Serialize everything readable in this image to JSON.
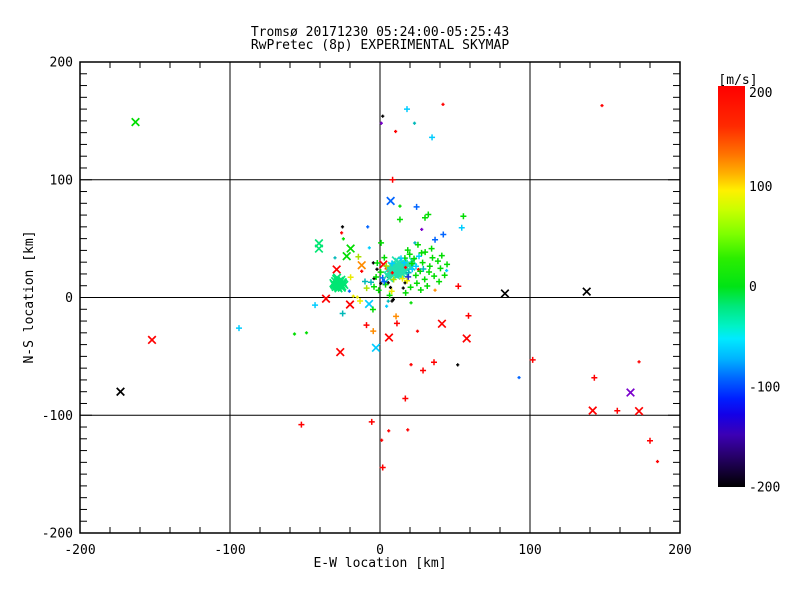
{
  "chart_data": {
    "type": "scatter",
    "title": "Tromsø 20171230 05:24:00-05:25:43",
    "subtitle": "RwPretec (8p) EXPERIMENTAL SKYMAP",
    "xlabel": "E-W location [km]",
    "ylabel": "N-S location [km]",
    "xlim": [
      -200,
      200
    ],
    "ylim": [
      -200,
      200
    ],
    "xticks": [
      -200,
      -100,
      0,
      100,
      200
    ],
    "yticks": [
      -200,
      -100,
      0,
      100,
      200
    ],
    "x_minor_step": 20,
    "y_minor_step": 10,
    "grid": "on",
    "grid_lines": {
      "x": [
        -100,
        0,
        100
      ],
      "y": [
        -100,
        0,
        100
      ]
    },
    "frame_color": "#000000",
    "colorbar": {
      "label": "[m/s]",
      "max": 200,
      "min": -200,
      "ticks": [
        200,
        100,
        0,
        -100,
        -200
      ],
      "stops": [
        [
          0.0,
          "#ff0000"
        ],
        [
          0.1,
          "#ff2a00"
        ],
        [
          0.17,
          "#ff7300"
        ],
        [
          0.22,
          "#ffb300"
        ],
        [
          0.26,
          "#fff000"
        ],
        [
          0.31,
          "#c8ff00"
        ],
        [
          0.37,
          "#7dff00"
        ],
        [
          0.43,
          "#2bee00"
        ],
        [
          0.5,
          "#00e415"
        ],
        [
          0.55,
          "#00e87c"
        ],
        [
          0.6,
          "#00f2c8"
        ],
        [
          0.63,
          "#00eaff"
        ],
        [
          0.68,
          "#00b4ff"
        ],
        [
          0.73,
          "#0064ff"
        ],
        [
          0.78,
          "#001eff"
        ],
        [
          0.82,
          "#1400e6"
        ],
        [
          0.87,
          "#3c00b4"
        ],
        [
          0.92,
          "#28006e"
        ],
        [
          1.0,
          "#000000"
        ]
      ]
    },
    "palette": {
      "R": "#ff0000",
      "O": "#ff8c00",
      "Y": "#eaea00",
      "YG": "#aae000",
      "G": "#00dd00",
      "SG": "#00e673",
      "TQ": "#22e0ae",
      "T": "#00b8b8",
      "C": "#00ccff",
      "B": "#0064ff",
      "DB": "#2328d2",
      "P": "#7a00cc",
      "K": "#000000"
    },
    "marker_legend": {
      "x": "cross-x marker",
      "+": "plus marker",
      ".": "tiny mark"
    },
    "points": [
      [
        -163,
        149,
        "G",
        "x"
      ],
      [
        148,
        163,
        "R",
        "."
      ],
      [
        18,
        160,
        "C",
        "+"
      ],
      [
        42,
        164,
        "R",
        "."
      ],
      [
        1.8,
        154,
        "K",
        "."
      ],
      [
        0.9,
        148,
        "P",
        "."
      ],
      [
        23,
        148,
        "T",
        "."
      ],
      [
        10.4,
        141,
        "R",
        "."
      ],
      [
        34.7,
        136,
        "C",
        "+"
      ],
      [
        8.4,
        100,
        "R",
        "+"
      ],
      [
        7.1,
        82,
        "B",
        "x"
      ],
      [
        -8.2,
        60,
        "B",
        "."
      ],
      [
        83.3,
        3.4,
        "K",
        "x"
      ],
      [
        137.8,
        5,
        "K",
        "x"
      ],
      [
        -173,
        -80,
        "K",
        "x"
      ],
      [
        -152,
        -36,
        "R",
        "x"
      ],
      [
        -94,
        -26,
        "C",
        "+"
      ],
      [
        -57,
        -31,
        "G",
        "."
      ],
      [
        -49,
        -30,
        "G",
        "."
      ],
      [
        -52.4,
        -108,
        "R",
        "+"
      ],
      [
        101.8,
        -53,
        "R",
        "+"
      ],
      [
        92.7,
        -68,
        "B",
        "."
      ],
      [
        172.7,
        -54.6,
        "R",
        "."
      ],
      [
        142.9,
        -68.2,
        "R",
        "+"
      ],
      [
        167,
        -80.7,
        "P",
        "x"
      ],
      [
        141.8,
        -96,
        "R",
        "x"
      ],
      [
        158.2,
        -96.2,
        "R",
        "+"
      ],
      [
        172.7,
        -96.5,
        "R",
        "x"
      ],
      [
        180,
        -121.7,
        "R",
        "+"
      ],
      [
        185,
        -139.3,
        "R",
        "."
      ],
      [
        -5.5,
        -105.6,
        "R",
        "+"
      ],
      [
        5.8,
        -113.2,
        "R",
        "."
      ],
      [
        18.5,
        -112.4,
        "R",
        "."
      ],
      [
        1.1,
        -121.2,
        "R",
        "."
      ],
      [
        1.8,
        -144.4,
        "R",
        "+"
      ],
      [
        -2.7,
        -42.7,
        "C",
        "x"
      ],
      [
        -26.5,
        -46.4,
        "R",
        "x"
      ],
      [
        20.7,
        -57,
        "R",
        "."
      ],
      [
        36,
        -55,
        "R",
        "+"
      ],
      [
        51.8,
        -57.2,
        "K",
        "."
      ],
      [
        28.7,
        -62,
        "R",
        "+"
      ],
      [
        16.9,
        -85.8,
        "R",
        "+"
      ],
      [
        6,
        -34,
        "R",
        "x"
      ],
      [
        25,
        -28.6,
        "R",
        "."
      ],
      [
        41.3,
        -22.3,
        "R",
        "x"
      ],
      [
        59,
        -15.5,
        "R",
        "+"
      ],
      [
        57.8,
        -34.8,
        "R",
        "x"
      ],
      [
        11.3,
        -22,
        "R",
        "+"
      ],
      [
        -9,
        -23.5,
        "R",
        "+"
      ],
      [
        -4.5,
        -28.6,
        "O",
        "+"
      ],
      [
        10.7,
        -16,
        "O",
        "+"
      ],
      [
        -24.9,
        -13.6,
        "T",
        "+"
      ],
      [
        -43.3,
        -6.5,
        "C",
        "+"
      ],
      [
        -20,
        -6,
        "R",
        "x"
      ],
      [
        -13.3,
        -3,
        "Y",
        "+"
      ],
      [
        -7.3,
        -5.5,
        "C",
        "x"
      ],
      [
        8,
        -3,
        "K",
        "."
      ],
      [
        20.7,
        -4.5,
        "G",
        "."
      ],
      [
        -36,
        -1,
        "R",
        "x"
      ],
      [
        -15.1,
        0.3,
        "Y",
        "."
      ],
      [
        -17.8,
        1.1,
        "Y",
        "."
      ],
      [
        5.5,
        -3.1,
        "T",
        "."
      ],
      [
        8.9,
        -1.7,
        "K",
        "."
      ],
      [
        4.4,
        -7.4,
        "C",
        "."
      ],
      [
        -4.7,
        -10.2,
        "G",
        "+"
      ],
      [
        30,
        67.7,
        "G",
        "+"
      ],
      [
        13.3,
        66.2,
        "G",
        "+"
      ],
      [
        55.6,
        69,
        "G",
        "+"
      ],
      [
        32.2,
        70.5,
        "G",
        "+"
      ],
      [
        24.4,
        77,
        "B",
        "+"
      ],
      [
        13.3,
        77.6,
        "G",
        "."
      ],
      [
        54.5,
        59.2,
        "C",
        "+"
      ],
      [
        27.8,
        57.8,
        "P",
        "."
      ],
      [
        42.2,
        53.5,
        "B",
        "+"
      ],
      [
        36.7,
        49,
        "B",
        "+"
      ],
      [
        23.3,
        46.4,
        "T",
        "."
      ],
      [
        -25.6,
        54.9,
        "R",
        "."
      ],
      [
        -25,
        60,
        "K",
        "."
      ],
      [
        -24.4,
        49.8,
        "G",
        "."
      ],
      [
        -7.1,
        42.2,
        "C",
        "."
      ],
      [
        0.7,
        46.4,
        "G",
        "+"
      ],
      [
        -40.7,
        46,
        "SG",
        "x"
      ],
      [
        -40.7,
        41.5,
        "SG",
        "x"
      ],
      [
        -19.6,
        41.6,
        "G",
        "x"
      ],
      [
        -22.2,
        35.1,
        "G",
        "x"
      ],
      [
        -30,
        33.7,
        "T",
        "."
      ],
      [
        -14.4,
        34.6,
        "YG",
        "+"
      ],
      [
        -12.2,
        27.4,
        "O",
        "x"
      ],
      [
        -12.2,
        22.3,
        "R",
        "."
      ],
      [
        -28.9,
        23.8,
        "R",
        "x"
      ],
      [
        52.2,
        9.6,
        "R",
        "+"
      ],
      [
        36.7,
        6.2,
        "O",
        "."
      ],
      [
        44.4,
        22.9,
        "C",
        "."
      ],
      [
        25.6,
        23.8,
        "R",
        "."
      ],
      [
        -19.6,
        17.2,
        "Y",
        "+"
      ],
      [
        -20.4,
        5.4,
        "B",
        "."
      ],
      [
        -10,
        13.6,
        "T",
        "+"
      ],
      [
        -6,
        13,
        "T",
        "+"
      ],
      [
        -4,
        16.1,
        "K",
        "."
      ],
      [
        -4,
        9.1,
        "G",
        "+"
      ],
      [
        1.8,
        16.7,
        "B",
        "+"
      ],
      [
        5.3,
        17.8,
        "K",
        "."
      ],
      [
        5.1,
        24.4,
        "R",
        "+"
      ],
      [
        2.2,
        28,
        "R",
        "x"
      ],
      [
        7.8,
        5.3,
        "Y",
        "+"
      ],
      [
        5.5,
        12.5,
        "K",
        "."
      ],
      [
        16.7,
        12.5,
        "K",
        "."
      ],
      [
        11.1,
        19.5,
        "DB",
        "."
      ],
      [
        26,
        35,
        "C",
        "+"
      ],
      [
        -4.4,
        29.4,
        "K",
        "."
      ],
      [
        -30.1,
        10.2,
        "SG",
        "x"
      ],
      [
        -28.3,
        12.8,
        "SG",
        "x"
      ],
      [
        -26,
        11,
        "SG",
        "x"
      ],
      [
        -29.5,
        8.9,
        "SG",
        "x"
      ],
      [
        -27.1,
        14.1,
        "SG",
        "x"
      ],
      [
        -25.2,
        9.5,
        "SG",
        "x"
      ],
      [
        -31,
        12.2,
        "SG",
        "x"
      ],
      [
        -28.8,
        10.5,
        "SG",
        "x"
      ],
      [
        -26.6,
        13.3,
        "SG",
        "x"
      ],
      [
        -24.5,
        11.8,
        "SG",
        "x"
      ],
      [
        -29.9,
        13.9,
        "SG",
        "x"
      ],
      [
        -27.7,
        7.8,
        "SG",
        "x"
      ],
      [
        -25.8,
        15,
        "SG",
        "x"
      ],
      [
        -30.6,
        11.3,
        "SG",
        "x"
      ],
      [
        -28.1,
        9.1,
        "SG",
        "x"
      ],
      [
        -26.3,
        10.1,
        "SG",
        "x"
      ],
      [
        -24.9,
        13,
        "SG",
        "x"
      ],
      [
        -29.2,
        15.8,
        "SG",
        "x"
      ],
      [
        -27.4,
        11.9,
        "SG",
        "x"
      ],
      [
        -25.5,
        8.3,
        "SG",
        "x"
      ],
      [
        -23.8,
        10.7,
        "SG",
        "x"
      ],
      [
        -28.6,
        16.9,
        "SG",
        "x"
      ],
      [
        11.2,
        23.5,
        "TQ",
        "x"
      ],
      [
        13,
        24.8,
        "TQ",
        "x"
      ],
      [
        9.8,
        22.1,
        "TQ",
        "x"
      ],
      [
        12.5,
        21,
        "TQ",
        "x"
      ],
      [
        14.1,
        25.9,
        "TQ",
        "x"
      ],
      [
        10.5,
        26.3,
        "TQ",
        "x"
      ],
      [
        8.9,
        24,
        "TQ",
        "x"
      ],
      [
        13.8,
        22.7,
        "TQ",
        "x"
      ],
      [
        15.2,
        24.3,
        "TQ",
        "x"
      ],
      [
        11.9,
        27.5,
        "TQ",
        "x"
      ],
      [
        7.6,
        21.5,
        "TQ",
        "x"
      ],
      [
        12.2,
        19.4,
        "TQ",
        "x"
      ],
      [
        14.8,
        27,
        "TQ",
        "x"
      ],
      [
        10.1,
        20.3,
        "TQ",
        "x"
      ],
      [
        13.4,
        26.1,
        "TQ",
        "x"
      ],
      [
        16,
        22,
        "TQ",
        "x"
      ],
      [
        9.2,
        25.2,
        "TQ",
        "x"
      ],
      [
        11.5,
        21.8,
        "TQ",
        "x"
      ],
      [
        12.8,
        23.9,
        "TQ",
        "x"
      ],
      [
        14.5,
        20.6,
        "TQ",
        "x"
      ],
      [
        8.3,
        23.1,
        "TQ",
        "x"
      ],
      [
        10.8,
        24.6,
        "TQ",
        "x"
      ],
      [
        13.1,
        28.4,
        "TQ",
        "x"
      ],
      [
        15.5,
        25.5,
        "TQ",
        "x"
      ],
      [
        9.5,
        19.8,
        "TQ",
        "x"
      ],
      [
        12,
        25.1,
        "TQ",
        "x"
      ],
      [
        6.8,
        22.8,
        "TQ",
        "x"
      ],
      [
        16.8,
        26.4,
        "TQ",
        "x"
      ],
      [
        11,
        18.6,
        "TQ",
        "x"
      ],
      [
        13.6,
        24.1,
        "TQ",
        "x"
      ],
      [
        7.9,
        26.8,
        "TQ",
        "x"
      ],
      [
        14.2,
        23.2,
        "TQ",
        "x"
      ],
      [
        10.3,
        27.9,
        "TQ",
        "x"
      ],
      [
        12.6,
        22.4,
        "TQ",
        "x"
      ],
      [
        15.8,
        28.8,
        "TQ",
        "x"
      ],
      [
        8.6,
        20.9,
        "TQ",
        "x"
      ],
      [
        17.4,
        24.9,
        "TQ",
        "x"
      ],
      [
        11.7,
        26.6,
        "TQ",
        "x"
      ],
      [
        13.3,
        20.1,
        "TQ",
        "x"
      ],
      [
        9.9,
        23.6,
        "TQ",
        "x"
      ],
      [
        18.2,
        27.7,
        "TQ",
        "x"
      ],
      [
        5.9,
        24.5,
        "TQ",
        "x"
      ],
      [
        16.3,
        21.3,
        "TQ",
        "x"
      ],
      [
        12.3,
        30.2,
        "TQ",
        "x"
      ],
      [
        10.6,
        31.5,
        "TQ",
        "x"
      ],
      [
        19.5,
        29,
        "TQ",
        "x"
      ],
      [
        20.8,
        26.2,
        "TQ",
        "x"
      ],
      [
        22,
        30.8,
        "TQ",
        "x"
      ],
      [
        4.8,
        18.9,
        "TQ",
        "x"
      ],
      [
        6.2,
        16.5,
        "TQ",
        "x"
      ],
      [
        18.5,
        40.2,
        "G",
        "+"
      ],
      [
        25.3,
        44.8,
        "G",
        "+"
      ],
      [
        30.1,
        38.5,
        "G",
        "+"
      ],
      [
        22.7,
        33,
        "G",
        "+"
      ],
      [
        28.4,
        29.6,
        "G",
        "+"
      ],
      [
        35,
        33.8,
        "G",
        "+"
      ],
      [
        33.2,
        26.5,
        "G",
        "+"
      ],
      [
        38.6,
        30.9,
        "G",
        "+"
      ],
      [
        40.3,
        24.7,
        "G",
        "+"
      ],
      [
        36.1,
        18.2,
        "G",
        "+"
      ],
      [
        29.8,
        15.4,
        "G",
        "+"
      ],
      [
        24.6,
        12.1,
        "G",
        "+"
      ],
      [
        31.5,
        9.8,
        "G",
        "+"
      ],
      [
        27.2,
        6.4,
        "G",
        "+"
      ],
      [
        20.4,
        8.7,
        "G",
        "+"
      ],
      [
        17.1,
        3.9,
        "G",
        "+"
      ],
      [
        23.9,
        18.8,
        "G",
        "+"
      ],
      [
        26.8,
        22.3,
        "G",
        "+"
      ],
      [
        32.7,
        21.7,
        "G",
        "+"
      ],
      [
        21.3,
        28.9,
        "G",
        "+"
      ],
      [
        16.6,
        33.4,
        "G",
        "+"
      ],
      [
        19.8,
        36.7,
        "G",
        "+"
      ],
      [
        27.7,
        37.9,
        "G",
        "+"
      ],
      [
        34.4,
        41.5,
        "G",
        "+"
      ],
      [
        41.2,
        35.6,
        "G",
        "+"
      ],
      [
        44.7,
        28.1,
        "G",
        "+"
      ],
      [
        39.4,
        13.5,
        "G",
        "+"
      ],
      [
        43.1,
        18.9,
        "G",
        "+"
      ],
      [
        2.9,
        33.9,
        "G",
        "+"
      ],
      [
        -1.8,
        29.3,
        "G",
        "+"
      ],
      [
        0.4,
        21.6,
        "G",
        "+"
      ],
      [
        -2.6,
        17.4,
        "G",
        "+"
      ],
      [
        3.7,
        10.9,
        "G",
        "+"
      ],
      [
        -0.9,
        6.2,
        "G",
        "+"
      ],
      [
        6.4,
        1.8,
        "G",
        "+"
      ],
      [
        9.1,
        15.3,
        "YG",
        "+"
      ],
      [
        4.2,
        26.7,
        "YG",
        "+"
      ],
      [
        15,
        16,
        "Y",
        "+"
      ],
      [
        -8.9,
        8,
        "YG",
        "+"
      ],
      [
        18,
        14.2,
        "Y",
        "+"
      ],
      [
        16.2,
        29.5,
        "C",
        "+"
      ],
      [
        21.5,
        24,
        "C",
        "+"
      ],
      [
        14,
        33.2,
        "C",
        "+"
      ],
      [
        8,
        29,
        "C",
        "+"
      ],
      [
        24,
        26.5,
        "C",
        "+"
      ],
      [
        19,
        21,
        "T",
        "+"
      ],
      [
        28.9,
        24.2,
        "T",
        "+"
      ],
      [
        0.5,
        12,
        "K",
        "."
      ],
      [
        -2,
        24,
        "K",
        "."
      ],
      [
        7,
        8.5,
        "K",
        "."
      ],
      [
        15.5,
        8,
        "K",
        "."
      ],
      [
        2.8,
        13.5,
        "B",
        "+"
      ],
      [
        18.8,
        17.5,
        "DB",
        "+"
      ],
      [
        8.2,
        21,
        "R",
        "."
      ],
      [
        17,
        25.5,
        "R",
        "."
      ]
    ]
  }
}
